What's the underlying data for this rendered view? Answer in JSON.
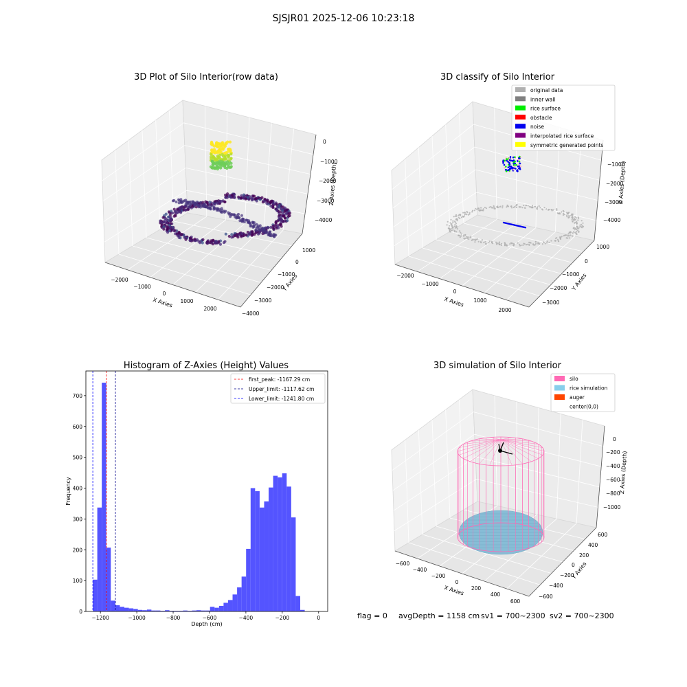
{
  "suptitle": "SJSJR01 2025-12-06 10:23:18",
  "footer": {
    "flag": "flag = 0",
    "avg_depth": "avgDepth = 1158 cm",
    "sv1": "sv1 = 700~2300",
    "sv2": "sv2 = 700~2300"
  },
  "panels": {
    "raw": {
      "title": "3D Plot of Silo Interior(row data)",
      "xlabel": "X Axies",
      "ylabel": "Y Axies",
      "zlabel": "Z Axies (Depth)",
      "xticks": [
        "−2000",
        "−1000",
        "0",
        "1000",
        "2000"
      ],
      "yticks": [
        "1000",
        "0",
        "−1000",
        "−2000",
        "−3000",
        "−4000"
      ],
      "zticks": [
        "0",
        "−1000",
        "−2000",
        "−3000",
        "−4000"
      ]
    },
    "classify": {
      "title": "3D classify of Silo Interior",
      "xlabel": "X Axies",
      "ylabel": "Y Axies",
      "zlabel": "Z Axies (Depth)",
      "xticks": [
        "−2000",
        "−1000",
        "0",
        "1000",
        "2000"
      ],
      "yticks": [
        "1000",
        "0",
        "−1000",
        "−2000",
        "−3000"
      ],
      "zticks": [
        "−1000",
        "−2000",
        "−3000",
        "−4000"
      ],
      "legend": [
        {
          "label": "original data",
          "color": "#b0b0b0"
        },
        {
          "label": "inner wall",
          "color": "#808080"
        },
        {
          "label": "rice surface",
          "color": "#00ee00"
        },
        {
          "label": "obstacle",
          "color": "#ff0000"
        },
        {
          "label": "noise",
          "color": "#0000ee"
        },
        {
          "label": "interpolated rice surface",
          "color": "#800080"
        },
        {
          "label": "symmetric generated points",
          "color": "#ffff00"
        }
      ]
    },
    "simulation": {
      "title": "3D simulation of Silo Interior",
      "xlabel": "X Axies",
      "ylabel": "Y Axies",
      "zlabel": "Z Axies (Depth)",
      "xticks": [
        "−600",
        "−400",
        "−200",
        "0",
        "200",
        "400",
        "600"
      ],
      "yticks": [
        "600",
        "400",
        "200",
        "0",
        "−200",
        "−400",
        "−600"
      ],
      "zticks": [
        "0",
        "−200",
        "−400",
        "−600",
        "−800",
        "−1000"
      ],
      "legend": [
        {
          "label": "silo",
          "color": "#ff69b4"
        },
        {
          "label": "rice simulation",
          "color": "#87ceeb"
        },
        {
          "label": "auger",
          "color": "#ff4500"
        },
        {
          "label": "center(0,0)",
          "color": ""
        }
      ]
    }
  },
  "chart_data": {
    "type": "bar",
    "title": "Histogram of Z-Axies (Height) Values",
    "xlabel": "Depth (cm)",
    "ylabel": "Frequency",
    "xlim": [
      -1280,
      50
    ],
    "ylim": [
      0,
      780
    ],
    "xticks": [
      -1200,
      -1000,
      -800,
      -600,
      -400,
      -200,
      0
    ],
    "xtick_labels": [
      "−1200",
      "−1000",
      "−800",
      "−600",
      "−400",
      "−200",
      "0"
    ],
    "yticks": [
      0,
      100,
      200,
      300,
      400,
      500,
      600,
      700
    ],
    "bar_color": "#4b4bff",
    "bins": {
      "start": -1242,
      "width": 24.8,
      "values": [
        103,
        337,
        742,
        207,
        35,
        20,
        15,
        12,
        10,
        8,
        5,
        4,
        6,
        3,
        3,
        2,
        4,
        2,
        2,
        2,
        3,
        2,
        3,
        4,
        3,
        3,
        15,
        12,
        18,
        28,
        37,
        55,
        78,
        113,
        203,
        400,
        390,
        337,
        357,
        402,
        440,
        435,
        448,
        405,
        305,
        50,
        5
      ]
    },
    "lines": [
      {
        "label": "first_peak: -1167.29 cm",
        "x": -1167.29,
        "color": "#ff0000"
      },
      {
        "label": "Upper_limit: -1117.62 cm",
        "x": -1117.62,
        "color": "#00008b"
      },
      {
        "label": "Lower_limit: -1241.80 cm",
        "x": -1241.8,
        "color": "#0000ff"
      }
    ]
  }
}
